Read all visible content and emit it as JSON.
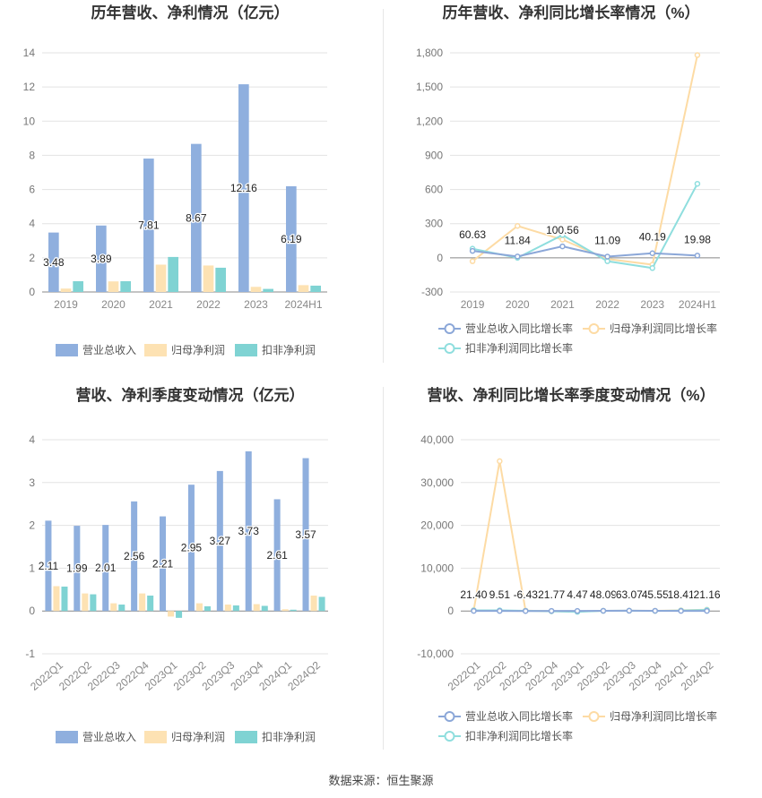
{
  "colors": {
    "revenue": "#8fafde",
    "net_profit": "#fde2b3",
    "deducted_profit": "#7fd3d3",
    "revenue_line": "#8ba7d8",
    "net_profit_line": "#fddba4",
    "deducted_profit_line": "#8fdede"
  },
  "source_text": "数据来源：恒生聚源",
  "chart_data": [
    {
      "id": "annual_values",
      "type": "bar",
      "title": "历年营收、净利情况（亿元）",
      "categories": [
        "2019",
        "2020",
        "2021",
        "2022",
        "2023",
        "2024H1"
      ],
      "ylim": [
        0,
        14
      ],
      "yticks": [
        0,
        2,
        4,
        6,
        8,
        10,
        12,
        14
      ],
      "ytick_labels": [
        "0",
        "2",
        "4",
        "6",
        "8",
        "10",
        "12",
        "14"
      ],
      "series": [
        {
          "name": "营业总收入",
          "values": [
            3.48,
            3.89,
            7.81,
            8.67,
            12.16,
            6.19
          ]
        },
        {
          "name": "归母净利润",
          "values": [
            0.2,
            0.62,
            1.6,
            1.55,
            0.3,
            0.4
          ]
        },
        {
          "name": "扣非净利润",
          "values": [
            0.63,
            0.63,
            2.05,
            1.42,
            0.18,
            0.37
          ]
        }
      ],
      "data_labels": [
        "3.48",
        "3.89",
        "7.81",
        "8.67",
        "12.16",
        "6.19"
      ],
      "label_series": 0,
      "legend_position": "bottom",
      "grid": true
    },
    {
      "id": "annual_growth",
      "type": "line",
      "title": "历年营收、净利同比增长率情况（%）",
      "categories": [
        "2019",
        "2020",
        "2021",
        "2022",
        "2023",
        "2024H1"
      ],
      "ylim": [
        -300,
        1800
      ],
      "yticks": [
        -300,
        0,
        300,
        600,
        900,
        1200,
        1500,
        1800
      ],
      "ytick_labels": [
        "-300",
        "0",
        "300",
        "600",
        "900",
        "1,200",
        "1,500",
        "1,800"
      ],
      "series": [
        {
          "name": "营业总收入同比增长率",
          "values": [
            60.63,
            11.84,
            100.56,
            11.09,
            40.19,
            19.98
          ]
        },
        {
          "name": "归母净利润同比增长率",
          "values": [
            -30,
            280,
            160,
            -10,
            -60,
            1780
          ]
        },
        {
          "name": "扣非净利润同比增长率",
          "values": [
            80,
            0,
            200,
            -30,
            -90,
            650
          ]
        }
      ],
      "data_labels": [
        "60.63",
        "11.84",
        "100.56",
        "11.09",
        "40.19",
        "19.98"
      ],
      "label_series": 0,
      "legend_position": "bottom",
      "grid": true
    },
    {
      "id": "quarterly_values",
      "type": "bar",
      "title": "营收、净利季度变动情况（亿元）",
      "categories": [
        "2022Q1",
        "2022Q2",
        "2022Q3",
        "2022Q4",
        "2023Q1",
        "2023Q2",
        "2023Q3",
        "2023Q4",
        "2024Q1",
        "2024Q2"
      ],
      "ylim": [
        -1,
        4
      ],
      "yticks": [
        -1,
        0,
        1,
        2,
        3,
        4
      ],
      "ytick_labels": [
        "-1",
        "0",
        "1",
        "2",
        "3",
        "4"
      ],
      "series": [
        {
          "name": "营业总收入",
          "values": [
            2.11,
            1.99,
            2.01,
            2.56,
            2.21,
            2.95,
            3.27,
            3.73,
            2.61,
            3.57
          ]
        },
        {
          "name": "归母净利润",
          "values": [
            0.58,
            0.41,
            0.18,
            0.41,
            -0.13,
            0.18,
            0.15,
            0.16,
            0.04,
            0.36
          ]
        },
        {
          "name": "扣非净利润",
          "values": [
            0.57,
            0.39,
            0.15,
            0.36,
            -0.16,
            0.11,
            0.13,
            0.12,
            0.03,
            0.33
          ]
        }
      ],
      "data_labels": [
        "2.11",
        "1.99",
        "2.01",
        "2.56",
        "2.21",
        "2.95",
        "3.27",
        "3.73",
        "2.61",
        "3.57"
      ],
      "label_series": 0,
      "legend_position": "bottom",
      "grid": true
    },
    {
      "id": "quarterly_growth",
      "type": "line",
      "title": "营收、净利同比增长率季度变动情况（%）",
      "categories": [
        "2022Q1",
        "2022Q2",
        "2022Q3",
        "2022Q4",
        "2023Q1",
        "2023Q2",
        "2023Q3",
        "2023Q4",
        "2024Q1",
        "2024Q2"
      ],
      "ylim": [
        -10000,
        40000
      ],
      "yticks": [
        -10000,
        0,
        10000,
        20000,
        30000,
        40000
      ],
      "ytick_labels": [
        "-10,000",
        "0",
        "10,000",
        "20,000",
        "30,000",
        "40,000"
      ],
      "series": [
        {
          "name": "营业总收入同比增长率",
          "values": [
            21.4,
            9.51,
            -6.43,
            21.77,
            4.47,
            48.09,
            63.07,
            45.55,
            18.41,
            21.16
          ]
        },
        {
          "name": "归母净利润同比增长率",
          "values": [
            200,
            35000,
            100,
            -50,
            -150,
            50,
            80,
            30,
            150,
            300
          ]
        },
        {
          "name": "扣非净利润同比增长率",
          "values": [
            150,
            150,
            50,
            -50,
            -200,
            30,
            60,
            20,
            100,
            250
          ]
        }
      ],
      "data_labels": [
        "21.40",
        "9.51",
        "-6.43",
        "21.77",
        "4.47",
        "48.09",
        "63.07",
        "45.55",
        "18.41",
        "21.16"
      ],
      "label_series": 0,
      "legend_position": "bottom",
      "grid": true
    }
  ]
}
